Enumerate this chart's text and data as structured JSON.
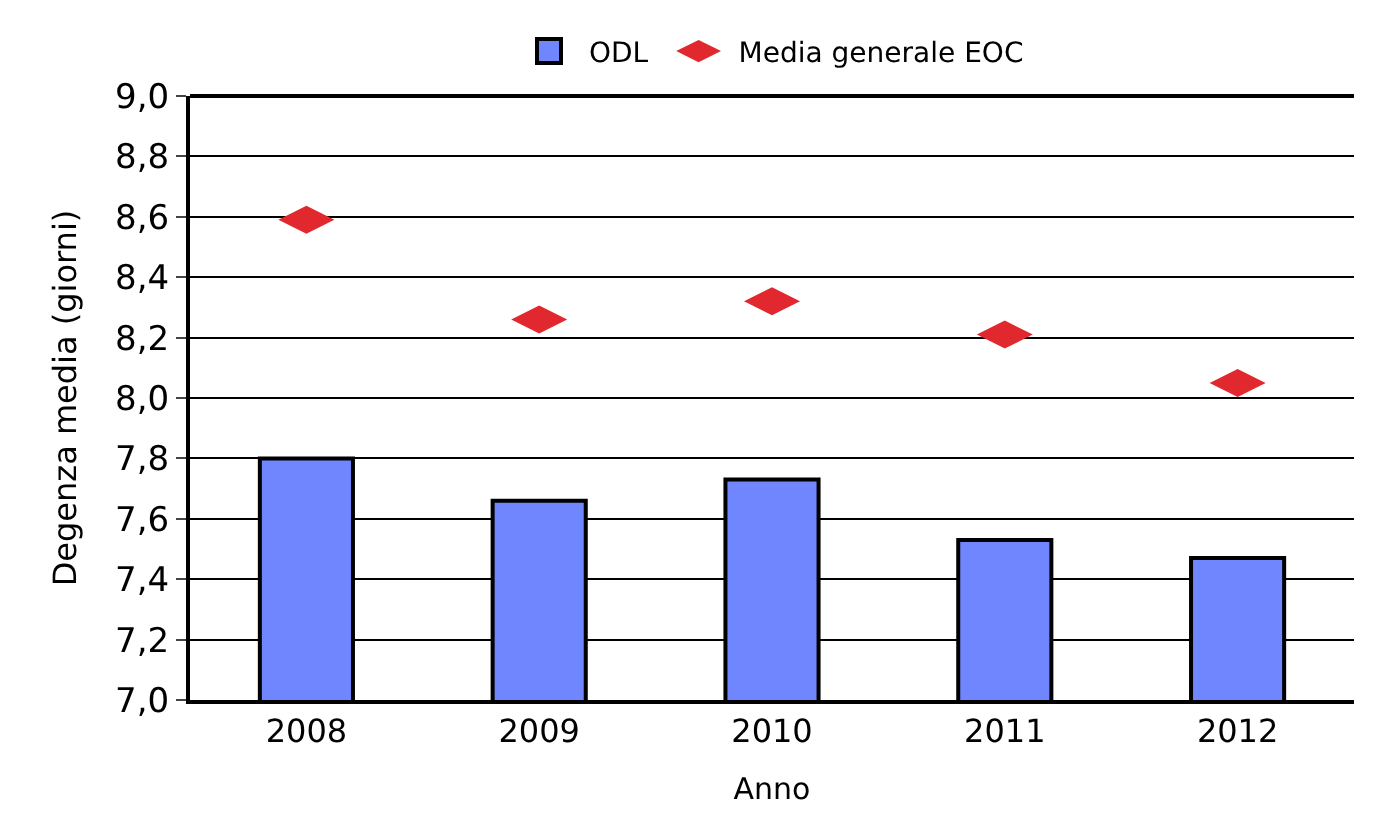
{
  "chart_data": {
    "type": "bar",
    "xlabel": "Anno",
    "ylabel": "Degenza media (giorni)",
    "categories": [
      "2008",
      "2009",
      "2010",
      "2011",
      "2012"
    ],
    "series": [
      {
        "name": "ODL",
        "color": "#6f86ff",
        "values": [
          7.8,
          7.66,
          7.73,
          7.53,
          7.47
        ]
      },
      {
        "name": "Media generale EOC",
        "type": "scatter",
        "color": "#e0282e",
        "values": [
          8.59,
          8.26,
          8.32,
          8.21,
          8.05
        ]
      }
    ],
    "ylim": [
      7.0,
      9.0
    ],
    "yticks": [
      {
        "value": 7.0,
        "label": "7,0"
      },
      {
        "value": 7.2,
        "label": "7,2"
      },
      {
        "value": 7.4,
        "label": "7,4"
      },
      {
        "value": 7.6,
        "label": "7,6"
      },
      {
        "value": 7.8,
        "label": "7,8"
      },
      {
        "value": 8.0,
        "label": "8,0"
      },
      {
        "value": 8.2,
        "label": "8,2"
      },
      {
        "value": 8.4,
        "label": "8,4"
      },
      {
        "value": 8.6,
        "label": "8,6"
      },
      {
        "value": 8.8,
        "label": "8,8"
      },
      {
        "value": 9.0,
        "label": "9,0"
      }
    ],
    "grid": "y",
    "legend": "top"
  }
}
